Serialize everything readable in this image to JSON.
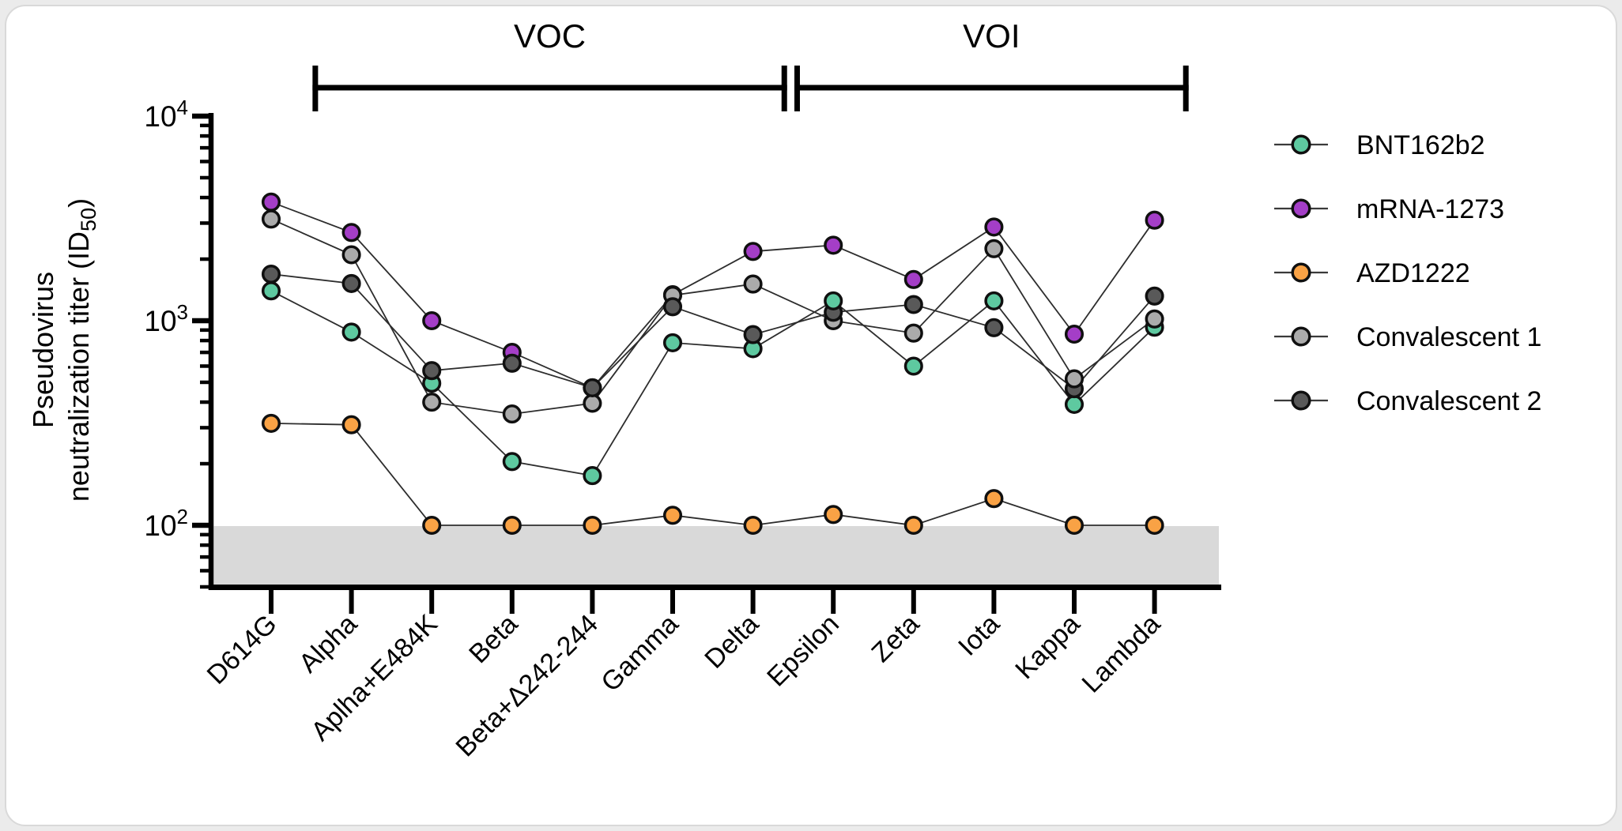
{
  "figure": {
    "title": "",
    "plot_bg": "#ffffff",
    "axis_color": "#000000",
    "lod_band_color": "#d9d9d9",
    "line_color": "#2d2d2d"
  },
  "y_axis": {
    "title_line1": "Pseudovirus",
    "title_line2_pre": "neutralization titer (ID",
    "title_line2_sub": "50",
    "title_line2_post": ")",
    "tick_labels": [
      {
        "base": "10",
        "exp": "4",
        "value": 10000
      },
      {
        "base": "10",
        "exp": "3",
        "value": 1000
      },
      {
        "base": "10",
        "exp": "2",
        "value": 100
      }
    ]
  },
  "group_brackets": [
    {
      "label": "VOC",
      "from_category_index": 1,
      "to_category_index": 6
    },
    {
      "label": "VOI",
      "from_category_index": 7,
      "to_category_index": 11
    }
  ],
  "legend": {
    "items": [
      "BNT162b2",
      "mRNA-1273",
      "AZD1222",
      "Convalescent 1",
      "Convalescent 2"
    ]
  },
  "chart_data": {
    "type": "line",
    "y_log_scale": true,
    "ylabel": "Pseudovirus neutralization titer (ID50)",
    "ylim": [
      50,
      10000
    ],
    "limit_of_detection": 100,
    "legend_position": "right",
    "categories": [
      "D614G",
      "Alpha",
      "Aplha+E484K",
      "Beta",
      "Beta+Δ242-244",
      "Gamma",
      "Delta",
      "Epsilon",
      "Zeta",
      "Iota",
      "Kappa",
      "Lambda"
    ],
    "series": [
      {
        "name": "BNT162b2",
        "color": "#5EC9A0",
        "values": [
          1400,
          880,
          495,
          205,
          175,
          780,
          730,
          1250,
          600,
          1250,
          390,
          930
        ]
      },
      {
        "name": "mRNA-1273",
        "color": "#A43EC7",
        "values": [
          3800,
          2700,
          1000,
          700,
          470,
          1340,
          2180,
          2340,
          1590,
          2870,
          860,
          3100
        ]
      },
      {
        "name": "AZD1222",
        "color": "#F9A245",
        "values": [
          315,
          310,
          100,
          100,
          100,
          112,
          100,
          113,
          100,
          135,
          100,
          100
        ]
      },
      {
        "name": "Convalescent 1",
        "color": "#ABABAB",
        "values": [
          3140,
          2100,
          400,
          350,
          395,
          1330,
          1510,
          1000,
          870,
          2250,
          520,
          1020
        ]
      },
      {
        "name": "Convalescent 2",
        "color": "#595959",
        "values": [
          1690,
          1520,
          570,
          620,
          470,
          1170,
          855,
          1100,
          1200,
          925,
          465,
          1320
        ]
      }
    ]
  }
}
